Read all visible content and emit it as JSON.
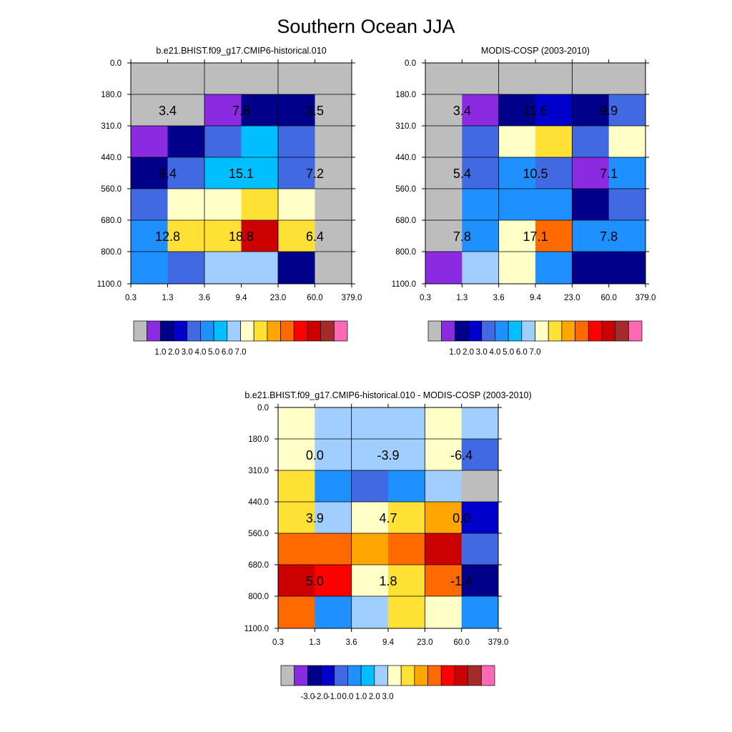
{
  "title": "Southern Ocean JJA",
  "colors": {
    "palette": [
      "#bdbdbd",
      "#8a2be2",
      "#00008b",
      "#0000cd",
      "#4169e1",
      "#1e90ff",
      "#00bfff",
      "#a0cfff",
      "#ffffc8",
      "#ffe135",
      "#ffa500",
      "#ff6a00",
      "#ff0000",
      "#cc0000",
      "#a52a2a",
      "#ff69b4"
    ]
  },
  "chart_data": [
    {
      "type": "heatmap",
      "title": "b.e21.BHIST.f09_g17.CMIP6-historical.010",
      "x_tick_labels": [
        "0.3",
        "1.3",
        "3.6",
        "9.4",
        "23.0",
        "60.0",
        "379.0"
      ],
      "y_tick_labels": [
        "0.0",
        "180.0",
        "310.0",
        "440.0",
        "560.0",
        "680.0",
        "800.0",
        "1100.0"
      ],
      "cell_color_index": [
        [
          0,
          0,
          0,
          0,
          0,
          0
        ],
        [
          0,
          0,
          1,
          2,
          2,
          0
        ],
        [
          1,
          2,
          4,
          6,
          4,
          0
        ],
        [
          2,
          4,
          6,
          6,
          4,
          0
        ],
        [
          4,
          8,
          8,
          9,
          8,
          0
        ],
        [
          5,
          9,
          9,
          13,
          9,
          0
        ],
        [
          5,
          4,
          7,
          7,
          2,
          0
        ]
      ],
      "annotations": [
        "3.4",
        "7.8",
        "3.5",
        "9.4",
        "15.1",
        "7.2",
        "12.8",
        "18.8",
        "6.4"
      ],
      "colorbar_labels": [
        "1.0",
        "2.0",
        "3.0",
        "4.0",
        "5.0",
        "6.0",
        "7.0"
      ]
    },
    {
      "type": "heatmap",
      "title": "MODIS-COSP (2003-2010)",
      "x_tick_labels": [
        "0.3",
        "1.3",
        "3.6",
        "9.4",
        "23.0",
        "60.0",
        "379.0"
      ],
      "y_tick_labels": [
        "0.0",
        "180.0",
        "310.0",
        "440.0",
        "560.0",
        "680.0",
        "800.0",
        "1100.0"
      ],
      "cell_color_index": [
        [
          0,
          0,
          0,
          0,
          0,
          0
        ],
        [
          0,
          1,
          2,
          3,
          2,
          4
        ],
        [
          0,
          4,
          8,
          9,
          4,
          8
        ],
        [
          0,
          4,
          5,
          4,
          1,
          5
        ],
        [
          0,
          5,
          5,
          5,
          2,
          4
        ],
        [
          0,
          5,
          8,
          11,
          5,
          5
        ],
        [
          1,
          7,
          8,
          5,
          2,
          2
        ]
      ],
      "annotations": [
        "3.4",
        "11.6",
        "9.9",
        "5.4",
        "10.5",
        "7.1",
        "7.8",
        "17.1",
        "7.8"
      ],
      "colorbar_labels": [
        "1.0",
        "2.0",
        "3.0",
        "4.0",
        "5.0",
        "6.0",
        "7.0"
      ]
    },
    {
      "type": "heatmap",
      "title": "b.e21.BHIST.f09_g17.CMIP6-historical.010 - MODIS-COSP (2003-2010)",
      "x_tick_labels": [
        "0.3",
        "1.3",
        "3.6",
        "9.4",
        "23.0",
        "60.0",
        "379.0"
      ],
      "y_tick_labels": [
        "0.0",
        "180.0",
        "310.0",
        "440.0",
        "560.0",
        "680.0",
        "800.0",
        "1100.0"
      ],
      "cell_color_index": [
        [
          8,
          7,
          7,
          7,
          8,
          7
        ],
        [
          8,
          7,
          7,
          7,
          8,
          4
        ],
        [
          9,
          5,
          4,
          5,
          7,
          0
        ],
        [
          9,
          7,
          8,
          9,
          10,
          3
        ],
        [
          11,
          11,
          10,
          11,
          13,
          4
        ],
        [
          13,
          12,
          8,
          9,
          11,
          2
        ],
        [
          11,
          5,
          7,
          9,
          8,
          5
        ]
      ],
      "annotations": [
        "0.0",
        "-3.9",
        "-6.4",
        "3.9",
        "4.7",
        "0.0",
        "5.0",
        "1.8",
        "-1.4"
      ],
      "colorbar_labels": [
        "-3.0",
        "-2.0",
        "-1.0",
        "0.0",
        "1.0",
        "2.0",
        "3.0"
      ]
    }
  ]
}
